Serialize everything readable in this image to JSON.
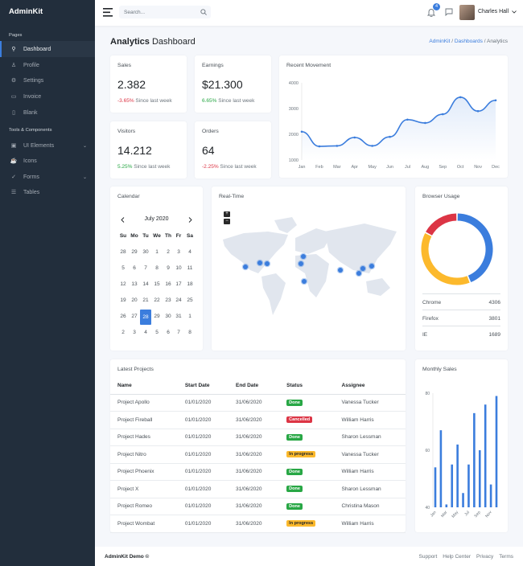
{
  "brand": "AdminKit",
  "sidebar": {
    "sections": [
      "Pages",
      "Tools & Components"
    ],
    "items": [
      {
        "label": "Dashboard",
        "icon": "sliders-icon"
      },
      {
        "label": "Profile",
        "icon": "user-icon"
      },
      {
        "label": "Settings",
        "icon": "settings-icon"
      },
      {
        "label": "Invoice",
        "icon": "credit-card-icon"
      },
      {
        "label": "Blank",
        "icon": "book-icon"
      },
      {
        "label": "UI Elements",
        "icon": "briefcase-icon"
      },
      {
        "label": "Icons",
        "icon": "coffee-icon"
      },
      {
        "label": "Forms",
        "icon": "check-circle-icon"
      },
      {
        "label": "Tables",
        "icon": "list-icon"
      }
    ]
  },
  "topbar": {
    "search_placeholder": "Search...",
    "notifications": "4",
    "user": "Charles Hall"
  },
  "page": {
    "title_bold": "Analytics",
    "title_rest": "Dashboard",
    "breadcrumb": [
      "AdminKit",
      "Dashboards",
      "Analytics"
    ]
  },
  "stats": [
    {
      "label": "Sales",
      "value": "2.382",
      "change": "-3.65%",
      "since": "Since last week",
      "color": "red"
    },
    {
      "label": "Earnings",
      "value": "$21.300",
      "change": "6.65%",
      "since": "Since last week",
      "color": "green"
    },
    {
      "label": "Visitors",
      "value": "14.212",
      "change": "5.25%",
      "since": "Since last week",
      "color": "green"
    },
    {
      "label": "Orders",
      "value": "64",
      "change": "-2.25%",
      "since": "Since last week",
      "color": "red"
    }
  ],
  "chart_data": [
    {
      "type": "area",
      "title": "Recent Movement",
      "categories": [
        "Jan",
        "Feb",
        "Mar",
        "Apr",
        "May",
        "Jun",
        "Jul",
        "Aug",
        "Sep",
        "Oct",
        "Nov",
        "Dec"
      ],
      "values": [
        2100,
        1530,
        1550,
        1875,
        1550,
        1900,
        2570,
        2440,
        2780,
        3440,
        2900,
        3320
      ],
      "yticks": [
        "4000",
        "3000",
        "2000",
        "1000"
      ],
      "ylim": [
        1000,
        4000
      ],
      "color": "#3b7ddd"
    },
    {
      "type": "bar",
      "title": "Monthly Sales",
      "categories": [
        "Jan",
        "Feb",
        "Mar",
        "Apr",
        "May",
        "Jun",
        "Jul",
        "Aug",
        "Sep",
        "Oct",
        "Nov",
        "Dec"
      ],
      "xtick_labels": [
        "Jan",
        "Mar",
        "May",
        "Jul",
        "Sep",
        "Nov"
      ],
      "values": [
        54,
        67,
        41,
        55,
        62,
        45,
        55,
        73,
        60,
        76,
        48,
        79
      ],
      "yticks": [
        "80",
        "60",
        "40"
      ],
      "ylim": [
        40,
        80
      ],
      "color": "#3b7ddd"
    },
    {
      "type": "pie",
      "title": "Browser Usage",
      "categories": [
        "Chrome",
        "Firefox",
        "IE"
      ],
      "values": [
        4306,
        3801,
        1689
      ],
      "colors": [
        "#3b7ddd",
        "#fcb92c",
        "#dc3545"
      ]
    }
  ],
  "calendar": {
    "title": "Calendar",
    "month": "July 2020",
    "days": [
      "Su",
      "Mo",
      "Tu",
      "We",
      "Th",
      "Fr",
      "Sa"
    ],
    "weeks": [
      [
        "28",
        "29",
        "30",
        "1",
        "2",
        "3",
        "4"
      ],
      [
        "5",
        "6",
        "7",
        "8",
        "9",
        "10",
        "11"
      ],
      [
        "12",
        "13",
        "14",
        "15",
        "16",
        "17",
        "18"
      ],
      [
        "19",
        "20",
        "21",
        "22",
        "23",
        "24",
        "25"
      ],
      [
        "26",
        "27",
        "28",
        "29",
        "30",
        "31",
        "1"
      ],
      [
        "2",
        "3",
        "4",
        "5",
        "6",
        "7",
        "8"
      ]
    ],
    "selected": "28"
  },
  "realtime": {
    "title": "Real-Time",
    "zoom_in": "+",
    "zoom_out": "−"
  },
  "browser": {
    "title": "Browser Usage",
    "rows": [
      {
        "name": "Chrome",
        "value": "4306"
      },
      {
        "name": "Firefox",
        "value": "3801"
      },
      {
        "name": "IE",
        "value": "1689"
      }
    ]
  },
  "projects": {
    "title": "Latest Projects",
    "columns": [
      "Name",
      "Start Date",
      "End Date",
      "Status",
      "Assignee"
    ],
    "rows": [
      [
        "Project Apollo",
        "01/01/2020",
        "31/06/2020",
        "Done",
        "Vanessa Tucker"
      ],
      [
        "Project Fireball",
        "01/01/2020",
        "31/06/2020",
        "Cancelled",
        "William Harris"
      ],
      [
        "Project Hades",
        "01/01/2020",
        "31/06/2020",
        "Done",
        "Sharon Lessman"
      ],
      [
        "Project Nitro",
        "01/01/2020",
        "31/06/2020",
        "In progress",
        "Vanessa Tucker"
      ],
      [
        "Project Phoenix",
        "01/01/2020",
        "31/06/2020",
        "Done",
        "William Harris"
      ],
      [
        "Project X",
        "01/01/2020",
        "31/06/2020",
        "Done",
        "Sharon Lessman"
      ],
      [
        "Project Romeo",
        "01/01/2020",
        "31/06/2020",
        "Done",
        "Christina Mason"
      ],
      [
        "Project Wombat",
        "01/01/2020",
        "31/06/2020",
        "In progress",
        "William Harris"
      ]
    ],
    "status_colors": {
      "Done": "#28a745",
      "Cancelled": "#dc3545",
      "In progress": "#fcb92c"
    }
  },
  "footer": {
    "left": "AdminKit Demo ©",
    "links": [
      "Support",
      "Help Center",
      "Privacy",
      "Terms"
    ]
  }
}
